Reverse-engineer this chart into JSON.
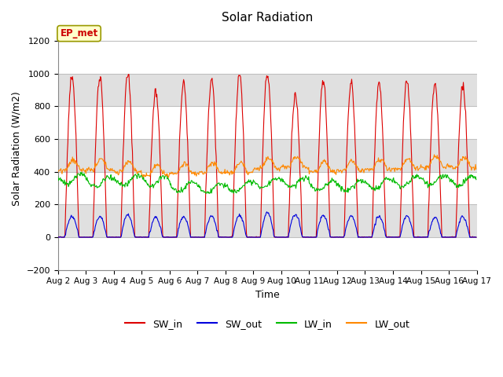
{
  "title": "Solar Radiation",
  "xlabel": "Time",
  "ylabel": "Solar Radiation (W/m2)",
  "ylim": [
    -200,
    1280
  ],
  "yticks": [
    -200,
    0,
    200,
    400,
    600,
    800,
    1000,
    1200
  ],
  "x_tick_labels": [
    "Aug 2",
    "Aug 3",
    "Aug 4",
    "Aug 5",
    "Aug 6",
    "Aug 7",
    "Aug 8",
    "Aug 9",
    "Aug 10",
    "Aug 11",
    "Aug 12",
    "Aug 13",
    "Aug 14",
    "Aug 15",
    "Aug 16",
    "Aug 17"
  ],
  "colors": {
    "SW_in": "#dd0000",
    "SW_out": "#0000dd",
    "LW_in": "#00bb00",
    "LW_out": "#ff8800"
  },
  "legend_label": "EP_met",
  "legend_box_color": "#ffffcc",
  "legend_box_border": "#999900",
  "background_color": "#ffffff",
  "grid_band_colors": [
    "#ffffff",
    "#e0e0e0"
  ],
  "n_days": 15,
  "dt_minutes": 30,
  "SW_in_peaks": [
    980,
    975,
    995,
    890,
    940,
    960,
    995,
    1000,
    870,
    960,
    950,
    945,
    960,
    940,
    930
  ],
  "SW_out_peaks": [
    130,
    128,
    135,
    120,
    127,
    130,
    135,
    150,
    140,
    135,
    130,
    128,
    130,
    120,
    125
  ],
  "LW_in_base": [
    355,
    340,
    350,
    345,
    310,
    300,
    305,
    330,
    340,
    315,
    315,
    325,
    340,
    350,
    345
  ],
  "LW_out_base": [
    410,
    415,
    400,
    380,
    390,
    395,
    395,
    420,
    430,
    400,
    405,
    415,
    420,
    430,
    425
  ]
}
